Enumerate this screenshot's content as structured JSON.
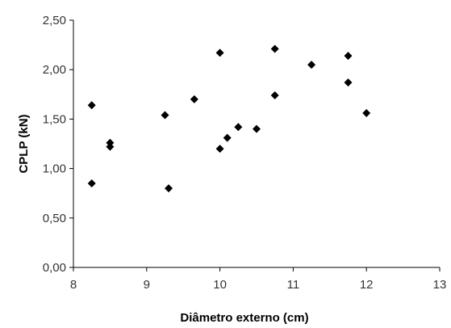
{
  "chart_data": {
    "type": "scatter",
    "xlabel": "Diâmetro externo (cm)",
    "ylabel": "CPLP (kN)",
    "xlim": [
      8,
      13
    ],
    "ylim": [
      0,
      2.5
    ],
    "x_ticks": [
      "8",
      "9",
      "10",
      "11",
      "12",
      "13"
    ],
    "y_ticks": [
      "0,00",
      "0,50",
      "1,00",
      "1,50",
      "2,00",
      "2,50"
    ],
    "grid": false,
    "legend": "none",
    "marker": "diamond",
    "marker_color": "#000000",
    "points": [
      {
        "x": 8.25,
        "y": 1.64
      },
      {
        "x": 8.25,
        "y": 0.85
      },
      {
        "x": 8.5,
        "y": 1.26
      },
      {
        "x": 8.5,
        "y": 1.22
      },
      {
        "x": 9.25,
        "y": 1.54
      },
      {
        "x": 9.3,
        "y": 0.8
      },
      {
        "x": 9.65,
        "y": 1.7
      },
      {
        "x": 10.0,
        "y": 2.17
      },
      {
        "x": 10.0,
        "y": 1.2
      },
      {
        "x": 10.1,
        "y": 1.31
      },
      {
        "x": 10.25,
        "y": 1.42
      },
      {
        "x": 10.5,
        "y": 1.4
      },
      {
        "x": 10.75,
        "y": 2.21
      },
      {
        "x": 10.75,
        "y": 1.74
      },
      {
        "x": 11.25,
        "y": 2.05
      },
      {
        "x": 11.75,
        "y": 2.14
      },
      {
        "x": 11.75,
        "y": 1.87
      },
      {
        "x": 12.0,
        "y": 1.56
      }
    ]
  }
}
